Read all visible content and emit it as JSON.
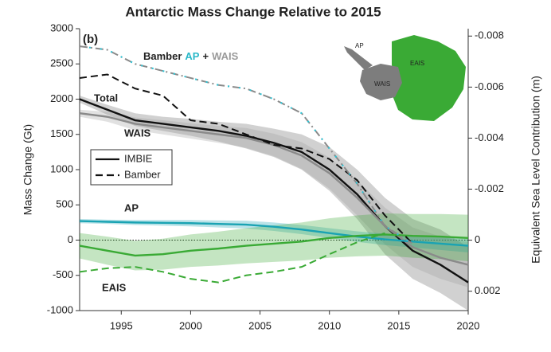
{
  "chart_data": {
    "type": "line",
    "title": "Antarctic Mass Change Relative to 2015",
    "panel_label": "(b)",
    "ylabel": "Mass Change (Gt)",
    "y2label": "Equivalent Sea Level Contribution (m)",
    "x": [
      1992,
      1994,
      1996,
      1998,
      2000,
      2002,
      2004,
      2006,
      2008,
      2010,
      2012,
      2014,
      2016,
      2018,
      2020
    ],
    "xlim": [
      1992,
      2020
    ],
    "xticks": [
      1995,
      2000,
      2005,
      2010,
      2015,
      2020
    ],
    "ylim": [
      -1000,
      3000
    ],
    "yticks": [
      -1000,
      -500,
      0,
      500,
      1000,
      1500,
      2000,
      2500,
      3000
    ],
    "y2lim": [
      0.00276,
      -0.00829
    ],
    "y2ticks": [
      0.002,
      0,
      -0.002,
      -0.004,
      -0.006,
      -0.008
    ],
    "legend": [
      {
        "label": "IMBIE",
        "dash": "solid"
      },
      {
        "label": "Bamber",
        "dash": "dashed"
      }
    ],
    "bamber_label": [
      "Bamber",
      "AP",
      "+",
      "WAIS"
    ],
    "map_labels": [
      "AP",
      "WAIS",
      "EAIS"
    ],
    "series": [
      {
        "name": "Total",
        "color": "#111111",
        "band_color": "#666666",
        "dash": "solid",
        "values": [
          2000,
          1850,
          1700,
          1650,
          1600,
          1550,
          1480,
          1380,
          1250,
          1000,
          650,
          200,
          -150,
          -350,
          -600
        ],
        "upper": [
          2050,
          1920,
          1800,
          1750,
          1720,
          1680,
          1650,
          1580,
          1500,
          1320,
          1000,
          600,
          300,
          150,
          -100
        ],
        "lower": [
          1950,
          1780,
          1620,
          1550,
          1480,
          1400,
          1300,
          1180,
          1000,
          700,
          300,
          -200,
          -550,
          -750,
          -1000
        ]
      },
      {
        "name": "WAIS",
        "color": "#8a8a8a",
        "band_color": "#9a9a9a",
        "dash": "solid",
        "values": [
          1800,
          1750,
          1650,
          1600,
          1550,
          1500,
          1450,
          1350,
          1200,
          950,
          600,
          200,
          -100,
          -250,
          -350
        ],
        "upper": [
          1850,
          1820,
          1740,
          1700,
          1660,
          1620,
          1590,
          1510,
          1390,
          1170,
          850,
          460,
          180,
          50,
          -30
        ],
        "lower": [
          1750,
          1680,
          1560,
          1500,
          1440,
          1380,
          1310,
          1190,
          1010,
          730,
          350,
          -60,
          -380,
          -550,
          -670
        ]
      },
      {
        "name": "AP",
        "color": "#1aa3b3",
        "band_color": "#1aa3b3",
        "dash": "solid",
        "values": [
          270,
          260,
          250,
          245,
          240,
          230,
          220,
          190,
          150,
          100,
          50,
          10,
          -20,
          -50,
          -80
        ],
        "upper": [
          300,
          290,
          285,
          285,
          285,
          280,
          275,
          250,
          215,
          170,
          125,
          90,
          65,
          40,
          15
        ],
        "lower": [
          240,
          230,
          215,
          205,
          195,
          180,
          165,
          130,
          85,
          30,
          -25,
          -70,
          -105,
          -140,
          -175
        ]
      },
      {
        "name": "EAIS",
        "color": "#3aaa35",
        "band_color": "#3aaa35",
        "dash": "solid",
        "values": [
          -80,
          -150,
          -220,
          -200,
          -150,
          -120,
          -80,
          -50,
          -20,
          30,
          60,
          80,
          60,
          50,
          30
        ],
        "upper": [
          100,
          50,
          -10,
          20,
          80,
          120,
          170,
          210,
          250,
          310,
          350,
          380,
          370,
          370,
          360
        ],
        "lower": [
          -260,
          -350,
          -430,
          -420,
          -380,
          -360,
          -330,
          -310,
          -290,
          -250,
          -230,
          -220,
          -250,
          -270,
          -300
        ]
      },
      {
        "color": "#111111",
        "dash": "dashed",
        "values": [
          2300,
          2350,
          2150,
          2050,
          1700,
          1650,
          1500,
          1350,
          1300,
          1150,
          850,
          350,
          -50,
          null,
          null
        ]
      },
      {
        "color": "#8a8a8a",
        "accent": "#2cc4d6",
        "dash": "dashdot",
        "values": [
          2750,
          2700,
          2500,
          2400,
          2300,
          2200,
          2150,
          2000,
          1800,
          1300,
          800,
          200,
          -50,
          null,
          null
        ]
      },
      {
        "color": "#3aaa35",
        "dash": "dashed",
        "values": [
          -450,
          -400,
          -380,
          -450,
          -550,
          -600,
          -500,
          -450,
          -380,
          -200,
          -30,
          100,
          null,
          null,
          null
        ]
      }
    ]
  }
}
